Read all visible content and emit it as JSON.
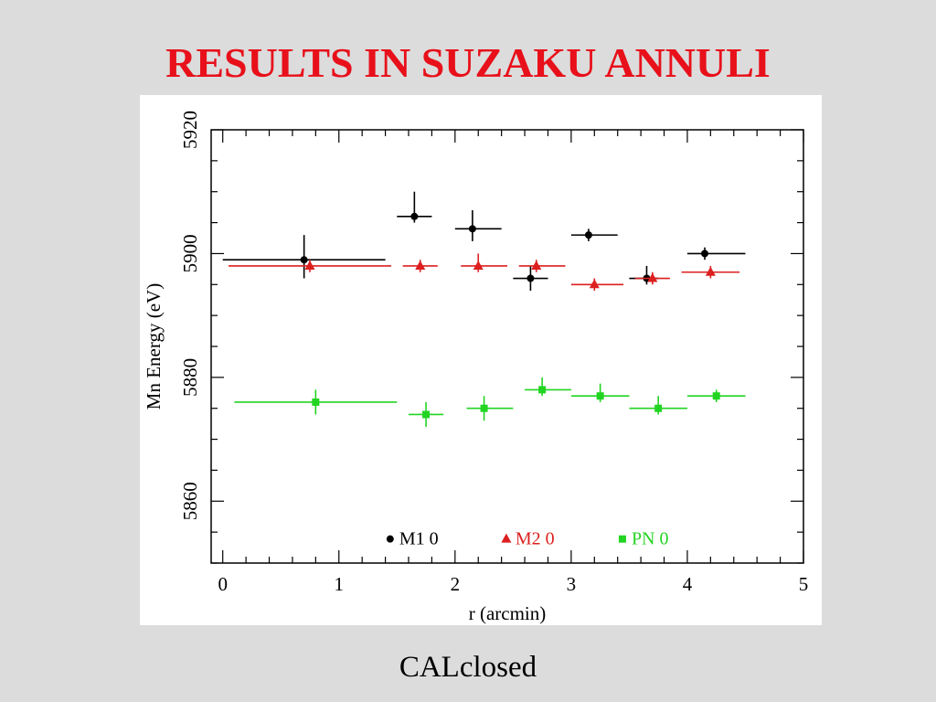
{
  "slide": {
    "title": "RESULTS IN SUZAKU ANNULI",
    "caption": "CALclosed"
  },
  "chart_data": {
    "type": "scatter",
    "xlabel": "r (arcmin)",
    "ylabel": "Mn Energy (eV)",
    "xlim": [
      -0.1,
      5
    ],
    "ylim": [
      5850,
      5920
    ],
    "x_ticks": [
      0,
      1,
      2,
      3,
      4,
      5
    ],
    "y_ticks": [
      5860,
      5880,
      5900,
      5920
    ],
    "legend_position": "bottom-center",
    "series": [
      {
        "name": "M1 0",
        "color": "#000000",
        "marker": "circle",
        "points": [
          {
            "x": 0.7,
            "y": 5899,
            "xerr": [
              0.0,
              1.4
            ],
            "yerr": [
              5896,
              5903
            ]
          },
          {
            "x": 1.65,
            "y": 5906,
            "xerr": [
              1.5,
              1.8
            ],
            "yerr": [
              5905,
              5910
            ]
          },
          {
            "x": 2.15,
            "y": 5904,
            "xerr": [
              2.0,
              2.4
            ],
            "yerr": [
              5902,
              5907
            ]
          },
          {
            "x": 2.65,
            "y": 5896,
            "xerr": [
              2.5,
              2.8
            ],
            "yerr": [
              5894,
              5898
            ]
          },
          {
            "x": 3.15,
            "y": 5903,
            "xerr": [
              3.0,
              3.4
            ],
            "yerr": [
              5902,
              5904
            ]
          },
          {
            "x": 3.65,
            "y": 5896,
            "xerr": [
              3.5,
              3.75
            ],
            "yerr": [
              5895,
              5898
            ]
          },
          {
            "x": 4.15,
            "y": 5900,
            "xerr": [
              4.0,
              4.5
            ],
            "yerr": [
              5899,
              5901
            ]
          }
        ]
      },
      {
        "name": "M2 0",
        "color": "#dd1f1f",
        "marker": "triangle",
        "points": [
          {
            "x": 0.75,
            "y": 5898,
            "xerr": [
              0.05,
              1.45
            ],
            "yerr": [
              5897,
              5899
            ]
          },
          {
            "x": 1.7,
            "y": 5898,
            "xerr": [
              1.55,
              1.85
            ],
            "yerr": [
              5897,
              5899
            ]
          },
          {
            "x": 2.2,
            "y": 5898,
            "xerr": [
              2.05,
              2.45
            ],
            "yerr": [
              5897,
              5900
            ]
          },
          {
            "x": 2.7,
            "y": 5898,
            "xerr": [
              2.55,
              2.95
            ],
            "yerr": [
              5897,
              5899
            ]
          },
          {
            "x": 3.2,
            "y": 5895,
            "xerr": [
              3.0,
              3.45
            ],
            "yerr": [
              5894,
              5896
            ]
          },
          {
            "x": 3.7,
            "y": 5896,
            "xerr": [
              3.55,
              3.85
            ],
            "yerr": [
              5895,
              5897
            ]
          },
          {
            "x": 4.2,
            "y": 5897,
            "xerr": [
              3.95,
              4.45
            ],
            "yerr": [
              5896,
              5898
            ]
          }
        ]
      },
      {
        "name": "PN 0",
        "color": "#22d422",
        "marker": "square",
        "points": [
          {
            "x": 0.8,
            "y": 5876,
            "xerr": [
              0.1,
              1.5
            ],
            "yerr": [
              5874,
              5878
            ]
          },
          {
            "x": 1.75,
            "y": 5874,
            "xerr": [
              1.6,
              1.9
            ],
            "yerr": [
              5872,
              5876
            ]
          },
          {
            "x": 2.25,
            "y": 5875,
            "xerr": [
              2.1,
              2.5
            ],
            "yerr": [
              5873,
              5877
            ]
          },
          {
            "x": 2.75,
            "y": 5878,
            "xerr": [
              2.6,
              3.0
            ],
            "yerr": [
              5877,
              5880
            ]
          },
          {
            "x": 3.25,
            "y": 5877,
            "xerr": [
              3.0,
              3.5
            ],
            "yerr": [
              5876,
              5879
            ]
          },
          {
            "x": 3.75,
            "y": 5875,
            "xerr": [
              3.5,
              4.0
            ],
            "yerr": [
              5874,
              5877
            ]
          },
          {
            "x": 4.25,
            "y": 5877,
            "xerr": [
              4.0,
              4.5
            ],
            "yerr": [
              5876,
              5878
            ]
          }
        ]
      }
    ]
  }
}
